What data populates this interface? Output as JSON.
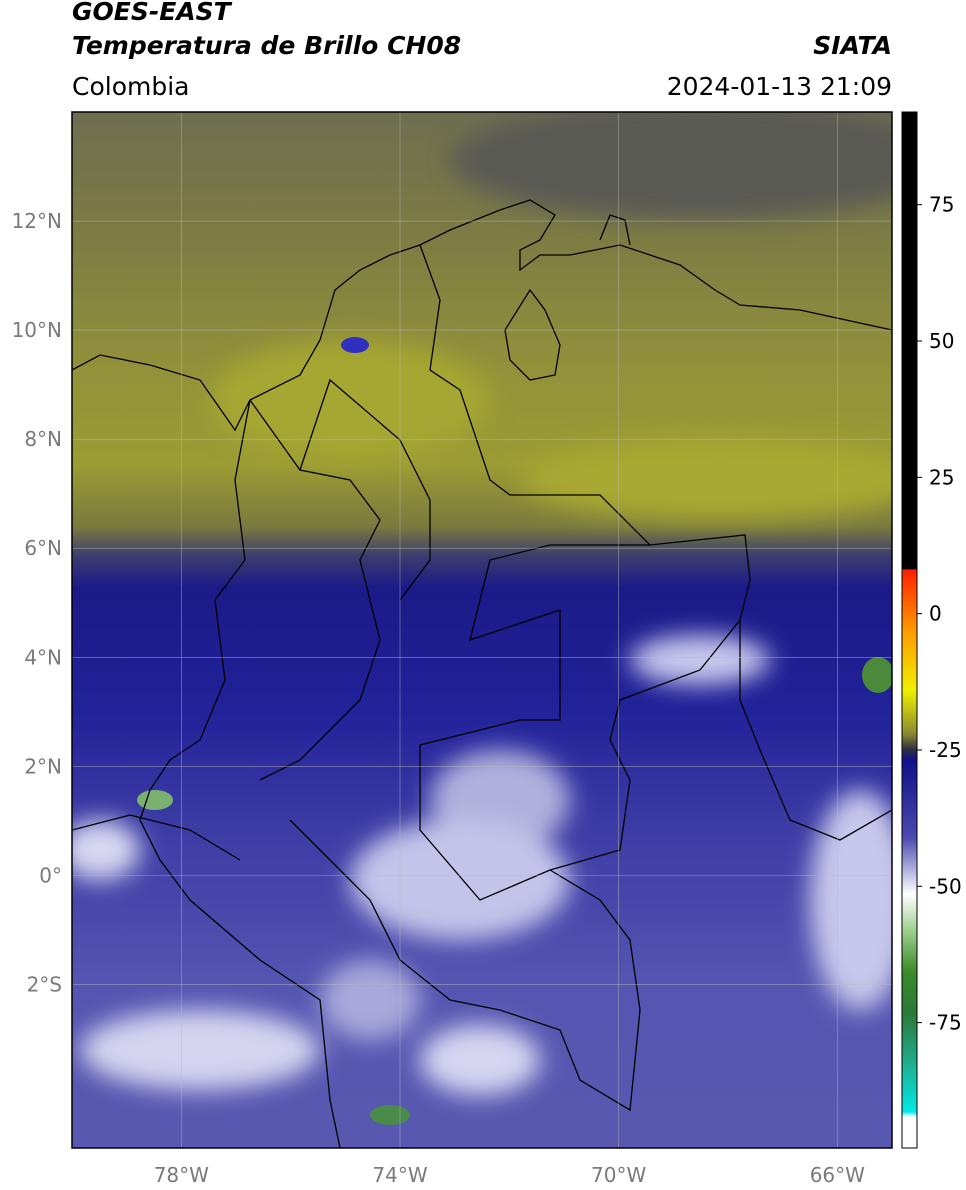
{
  "header": {
    "title": "GOES-EAST",
    "subtitle": "Temperatura de Brillo CH08",
    "region": "Colombia",
    "source": "SIATA",
    "datetime": "2024-01-13 21:09"
  },
  "map": {
    "xlim": [
      -80,
      -65
    ],
    "ylim": [
      -5,
      14
    ],
    "lat_ticks": [
      {
        "value": 12,
        "label": "12°N"
      },
      {
        "value": 10,
        "label": "10°N"
      },
      {
        "value": 8,
        "label": "8°N"
      },
      {
        "value": 6,
        "label": "6°N"
      },
      {
        "value": 4,
        "label": "4°N"
      },
      {
        "value": 2,
        "label": "2°N"
      },
      {
        "value": 0,
        "label": "0°"
      },
      {
        "value": -2,
        "label": "2°S"
      }
    ],
    "lon_ticks": [
      {
        "value": -78,
        "label": "78°W"
      },
      {
        "value": -74,
        "label": "74°W"
      },
      {
        "value": -70,
        "label": "70°W"
      },
      {
        "value": -66,
        "label": "66°W"
      }
    ]
  },
  "colorbar": {
    "lim": [
      -98,
      92
    ],
    "ticks": [
      75,
      50,
      25,
      0,
      -25,
      -50,
      -75
    ]
  }
}
